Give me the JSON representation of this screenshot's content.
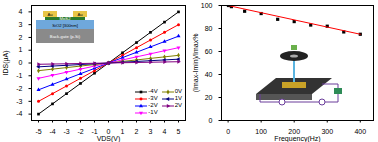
{
  "chart_data": [
    {
      "type": "line",
      "x_label": "VDS(V)",
      "y_label": "IDS(μA)",
      "x": [
        -5,
        -4,
        -3,
        -2,
        -1,
        0,
        1,
        2,
        3,
        4,
        5
      ],
      "xlim": [
        -5.5,
        5.5
      ],
      "xticks": [
        -5,
        -4,
        -3,
        -2,
        -1,
        0,
        1,
        2,
        3,
        4,
        5
      ],
      "ylim": [
        -4.5,
        4.5
      ],
      "yticks": [
        -4,
        -3,
        -2,
        -1,
        0,
        1,
        2,
        3,
        4
      ],
      "grid": false,
      "legend": "bottom-right",
      "annotations": [
        "Au",
        "Au",
        "MoS2",
        "SiO2 [300nm]",
        "Back-gate (p-Si)"
      ],
      "series": [
        {
          "name": "-4V",
          "color": "#000000",
          "marker": "square",
          "values": [
            -4,
            -3.2,
            -2.4,
            -1.6,
            -0.8,
            0,
            0.8,
            1.6,
            2.4,
            3.2,
            4
          ]
        },
        {
          "name": "-3V",
          "color": "#ff0000",
          "marker": "circle",
          "values": [
            -3,
            -2.4,
            -1.8,
            -1.2,
            -0.6,
            0,
            0.6,
            1.2,
            1.8,
            2.4,
            3
          ]
        },
        {
          "name": "-2V",
          "color": "#0000ff",
          "marker": "triangle",
          "values": [
            -2.1,
            -1.68,
            -1.26,
            -0.84,
            -0.42,
            0,
            0.42,
            0.84,
            1.26,
            1.68,
            2.1
          ]
        },
        {
          "name": "-1V",
          "color": "#ff00ff",
          "marker": "triangle-down",
          "values": [
            -1.2,
            -0.96,
            -0.72,
            -0.48,
            -0.24,
            0,
            0.24,
            0.48,
            0.72,
            0.96,
            1.2
          ]
        },
        {
          "name": "0V",
          "color": "#808000",
          "marker": "diamond",
          "values": [
            -0.6,
            -0.48,
            -0.36,
            -0.24,
            -0.12,
            0,
            0.12,
            0.24,
            0.36,
            0.48,
            0.6
          ]
        },
        {
          "name": "1V",
          "color": "#000080",
          "marker": "triangle-left",
          "values": [
            -0.3,
            -0.24,
            -0.18,
            -0.12,
            -0.06,
            0,
            0.06,
            0.12,
            0.18,
            0.24,
            0.3
          ]
        },
        {
          "name": "2V",
          "color": "#800080",
          "marker": "triangle-right",
          "values": [
            -0.1,
            -0.08,
            -0.06,
            -0.04,
            -0.02,
            0,
            0.02,
            0.04,
            0.06,
            0.08,
            0.1
          ]
        }
      ]
    },
    {
      "type": "scatter",
      "x_label": "Frequency(Hz)",
      "y_label": "(Imax-Imin)/Imax%",
      "xlim": [
        -20,
        440
      ],
      "xticks": [
        0,
        100,
        200,
        300,
        400
      ],
      "ylim": [
        0,
        100
      ],
      "yticks": [
        0,
        20,
        40,
        60,
        80,
        100
      ],
      "grid": false,
      "series": [
        {
          "type": "scatter",
          "color": "#000000",
          "marker": "square",
          "x": [
            1,
            10,
            50,
            100,
            150,
            200,
            250,
            300,
            350,
            400
          ],
          "values": [
            100,
            99,
            95,
            93,
            88,
            86,
            83,
            82,
            77,
            75
          ]
        },
        {
          "type": "line",
          "color": "#ff0000",
          "line_style": "solid",
          "x": [
            0,
            400
          ],
          "values": [
            100,
            75
          ]
        }
      ]
    }
  ]
}
